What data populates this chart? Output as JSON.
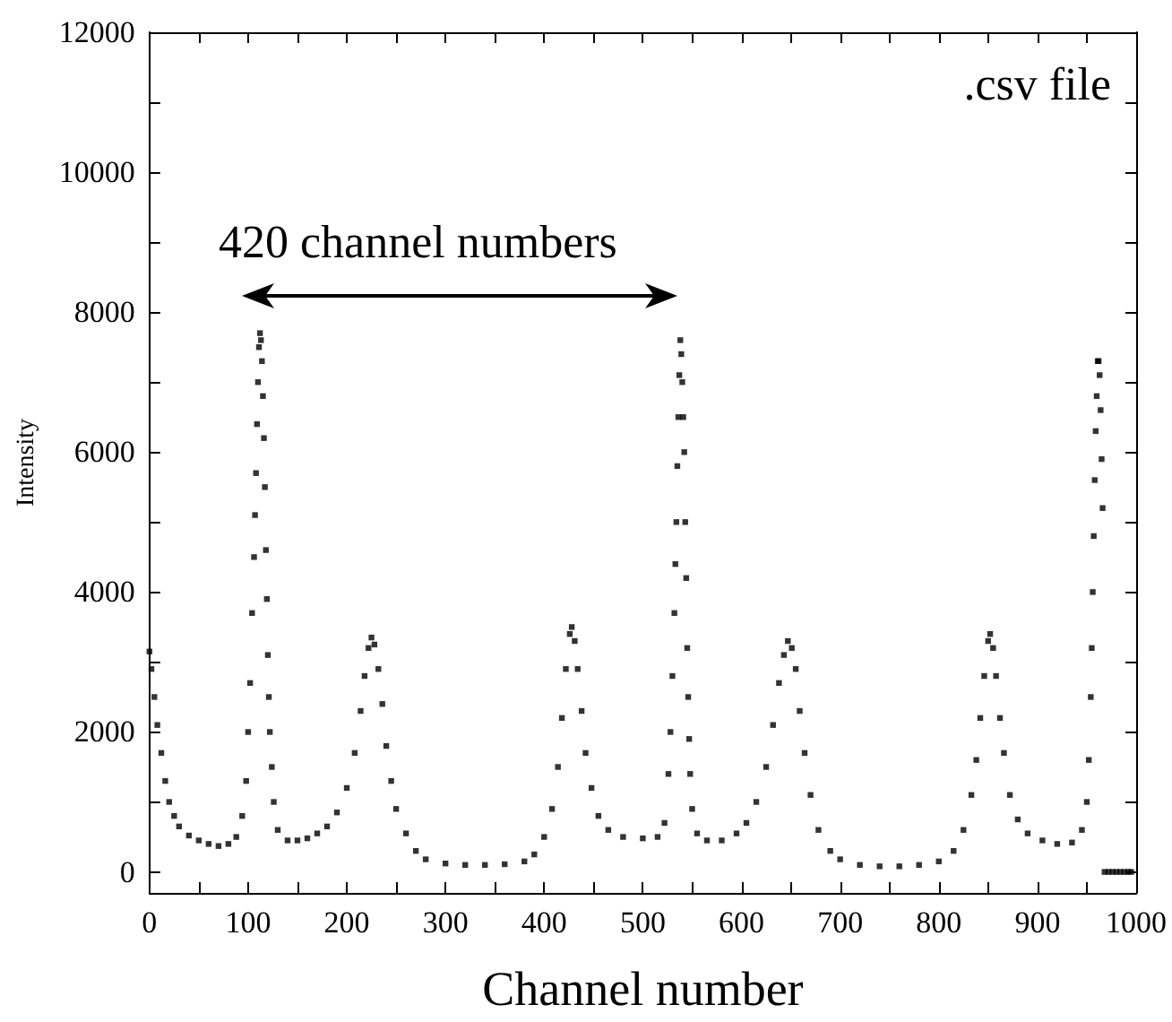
{
  "chart_data": {
    "type": "scatter",
    "xlabel": "Channel number",
    "ylabel": "Intensity",
    "annotations": [
      ".csv file",
      "420 channel numbers"
    ],
    "x": [
      0,
      2,
      5,
      8,
      12,
      16,
      20,
      25,
      30,
      40,
      50,
      60,
      70,
      80,
      88,
      94,
      98,
      100,
      102,
      104,
      106,
      107,
      108,
      109,
      110,
      111,
      112,
      113,
      114,
      115,
      116,
      117,
      118,
      119,
      120,
      121,
      122,
      124,
      126,
      130,
      140,
      150,
      160,
      170,
      180,
      190,
      200,
      208,
      214,
      218,
      222,
      225,
      228,
      232,
      236,
      240,
      245,
      250,
      260,
      270,
      280,
      300,
      320,
      340,
      360,
      380,
      390,
      400,
      408,
      414,
      418,
      422,
      426,
      428,
      431,
      434,
      438,
      442,
      448,
      455,
      465,
      480,
      500,
      515,
      522,
      526,
      528,
      530,
      532,
      533,
      534,
      535,
      536,
      537,
      538,
      539,
      540,
      541,
      542,
      543,
      544,
      545,
      546,
      547,
      548,
      550,
      555,
      565,
      580,
      595,
      605,
      615,
      625,
      632,
      638,
      643,
      647,
      651,
      655,
      659,
      664,
      670,
      678,
      690,
      700,
      720,
      740,
      760,
      780,
      800,
      815,
      825,
      833,
      838,
      842,
      846,
      850,
      852,
      855,
      858,
      862,
      866,
      872,
      880,
      890,
      905,
      920,
      935,
      945,
      950,
      952,
      954,
      955,
      956,
      957,
      958,
      959,
      960,
      961,
      962,
      963,
      964,
      965,
      966,
      968,
      972,
      976,
      980,
      984,
      988,
      992,
      995
    ],
    "values": [
      3150,
      2900,
      2500,
      2100,
      1700,
      1300,
      1000,
      800,
      650,
      520,
      450,
      400,
      370,
      400,
      500,
      800,
      1300,
      2000,
      2700,
      3700,
      4500,
      5100,
      5700,
      6400,
      7000,
      7500,
      7700,
      7600,
      7300,
      6800,
      6200,
      5500,
      4600,
      3900,
      3100,
      2500,
      2000,
      1500,
      1000,
      600,
      450,
      450,
      480,
      550,
      650,
      850,
      1200,
      1700,
      2300,
      2800,
      3200,
      3350,
      3250,
      2900,
      2400,
      1800,
      1300,
      900,
      550,
      300,
      180,
      120,
      100,
      100,
      110,
      150,
      250,
      500,
      900,
      1500,
      2200,
      2900,
      3400,
      3500,
      3300,
      2900,
      2300,
      1700,
      1200,
      800,
      600,
      500,
      480,
      500,
      700,
      1400,
      2000,
      2800,
      3700,
      4400,
      5000,
      5800,
      6500,
      7100,
      7600,
      7400,
      7000,
      6500,
      6000,
      5000,
      4200,
      3200,
      2500,
      1900,
      1400,
      900,
      550,
      450,
      450,
      550,
      700,
      1000,
      1500,
      2100,
      2700,
      3100,
      3300,
      3200,
      2900,
      2300,
      1700,
      1100,
      600,
      300,
      180,
      100,
      80,
      80,
      100,
      150,
      300,
      600,
      1100,
      1600,
      2200,
      2800,
      3300,
      3400,
      3200,
      2800,
      2200,
      1700,
      1100,
      750,
      550,
      450,
      400,
      420,
      600,
      1000,
      1600,
      2500,
      3200,
      4000,
      4800,
      5600,
      6300,
      6800,
      7300,
      7300,
      7100,
      6600,
      5900,
      5200,
      0,
      0,
      0,
      0,
      0,
      0,
      0,
      0
    ],
    "color": "#000000",
    "marker": "square",
    "xlim": [
      0,
      1000
    ],
    "xticks": [
      0,
      {
        "value": 50,
        "label": null
      },
      100,
      {
        "value": 150,
        "label": null
      },
      200,
      {
        "value": 250,
        "label": null
      },
      300,
      {
        "value": 350,
        "label": null
      },
      400,
      {
        "value": 450,
        "label": null
      },
      500,
      {
        "value": 550,
        "label": null
      },
      600,
      {
        "value": 650,
        "label": null
      },
      700,
      {
        "value": 750,
        "label": null
      },
      800,
      {
        "value": 850,
        "label": null
      },
      900,
      {
        "value": 950,
        "label": null
      },
      1000
    ],
    "ylim": [
      -300,
      12000
    ],
    "yticks": [
      0,
      {
        "value": 1000,
        "label": null
      },
      2000,
      {
        "value": 3000,
        "label": null
      },
      4000,
      {
        "value": 5000,
        "label": null
      },
      6000,
      {
        "value": 7000,
        "label": null
      },
      8000,
      {
        "value": 9000,
        "label": null
      },
      10000,
      {
        "value": 11000,
        "label": null
      },
      12000
    ],
    "grid": false
  }
}
